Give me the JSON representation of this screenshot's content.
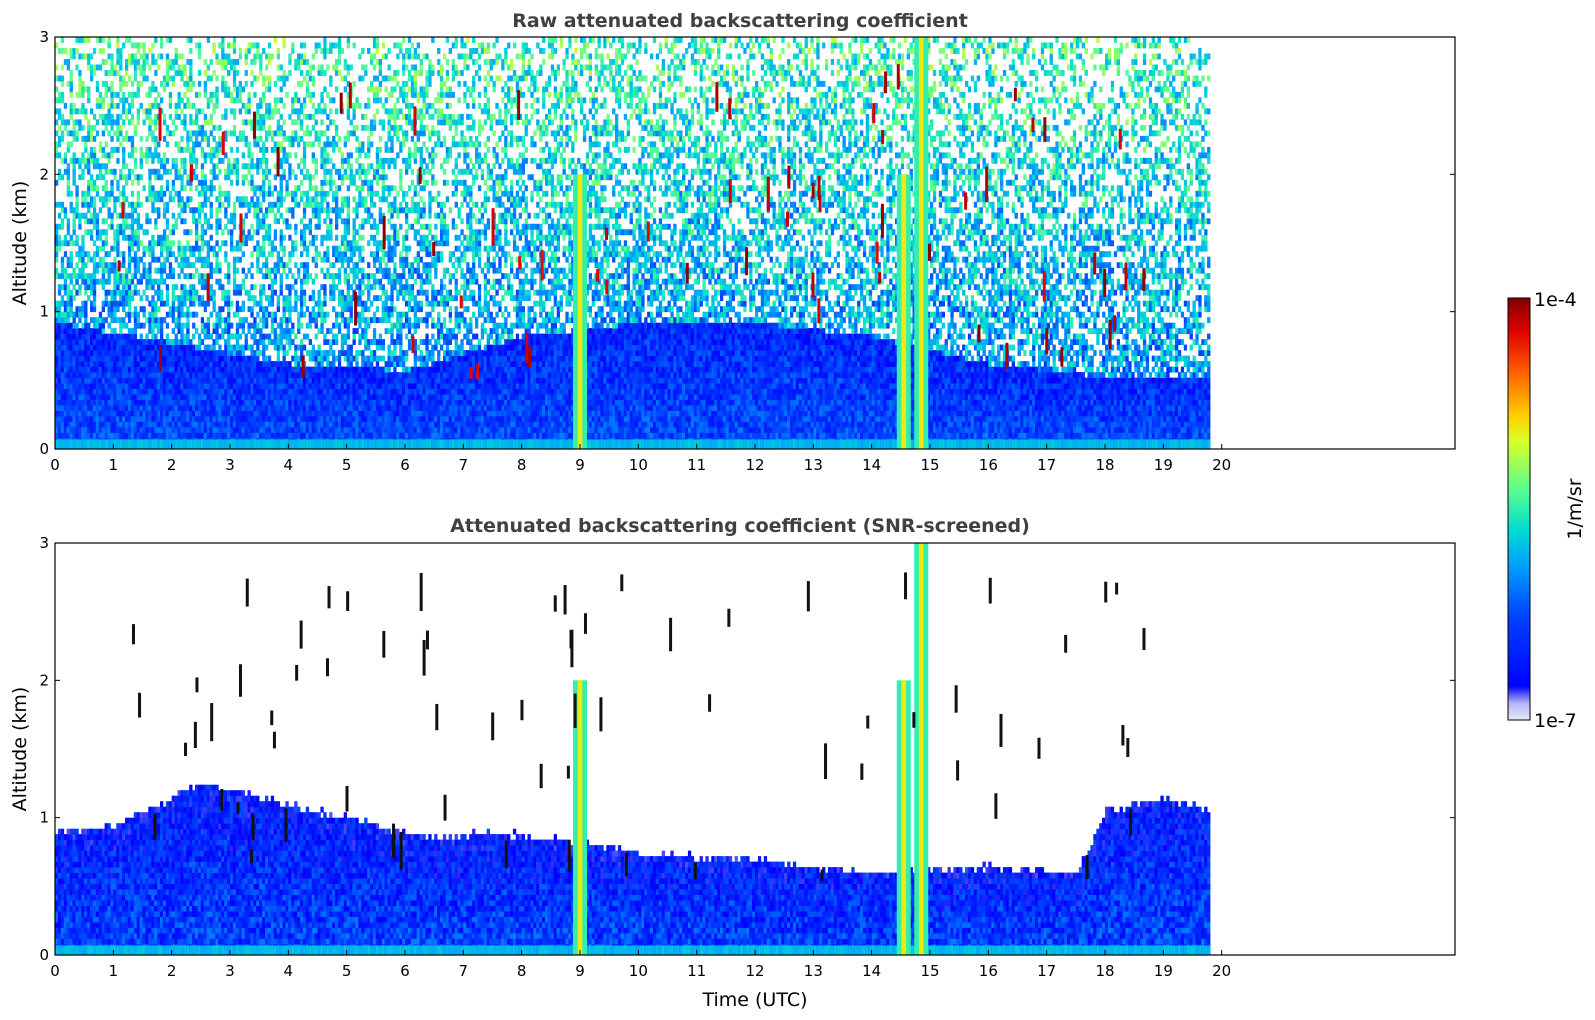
{
  "chart_data": [
    {
      "type": "heatmap",
      "title": "Raw attenuated backscattering coefficient",
      "xlabel": "",
      "ylabel": "Altitude (km)",
      "xlim": [
        0,
        24
      ],
      "ylim": [
        0,
        3
      ],
      "x_ticks": [
        "0",
        "1",
        "2",
        "3",
        "4",
        "5",
        "6",
        "7",
        "8",
        "9",
        "10",
        "11",
        "12",
        "13",
        "14",
        "15",
        "16",
        "17",
        "18",
        "19",
        "20"
      ],
      "y_ticks": [
        "0",
        "1",
        "2",
        "3"
      ],
      "data_time_range_utc": [
        0,
        19.8
      ],
      "color_scale": "log",
      "clim": [
        "1e-7",
        "1e-4"
      ],
      "grid": false,
      "features": [
        {
          "name": "aerosol_layer",
          "top_km_by_hour": [
            [
              0,
              0.9
            ],
            [
              2,
              0.75
            ],
            [
              4,
              0.6
            ],
            [
              6,
              0.55
            ],
            [
              8,
              0.8
            ],
            [
              10,
              0.9
            ],
            [
              12,
              0.9
            ],
            [
              14,
              0.8
            ],
            [
              16,
              0.6
            ],
            [
              18,
              0.5
            ],
            [
              19.8,
              0.5
            ]
          ]
        },
        {
          "name": "precipitation_column",
          "time_utc": 9.0,
          "from_km": 0,
          "to_km": 2.0
        },
        {
          "name": "precipitation_column",
          "time_utc": 14.55,
          "from_km": 0,
          "to_km": 2.0
        },
        {
          "name": "precipitation_column",
          "time_utc": 14.85,
          "from_km": 0,
          "to_km": 3.0
        }
      ]
    },
    {
      "type": "heatmap",
      "title": "Attenuated backscattering coefficient (SNR-screened)",
      "xlabel": "Time (UTC)",
      "ylabel": "Altitude (km)",
      "xlim": [
        0,
        24
      ],
      "ylim": [
        0,
        3
      ],
      "x_ticks": [
        "0",
        "1",
        "2",
        "3",
        "4",
        "5",
        "6",
        "7",
        "8",
        "9",
        "10",
        "11",
        "12",
        "13",
        "14",
        "15",
        "16",
        "17",
        "18",
        "19",
        "20"
      ],
      "y_ticks": [
        "0",
        "1",
        "2",
        "3"
      ],
      "data_time_range_utc": [
        0,
        19.8
      ],
      "color_scale": "log",
      "clim": [
        "1e-7",
        "1e-4"
      ],
      "grid": false,
      "features": [
        {
          "name": "screened_boundary_layer",
          "top_km_by_hour": [
            [
              0,
              0.85
            ],
            [
              1,
              0.9
            ],
            [
              2.5,
              1.2
            ],
            [
              4,
              1.05
            ],
            [
              5.5,
              0.9
            ],
            [
              6.5,
              0.8
            ],
            [
              7.5,
              0.85
            ],
            [
              8.5,
              0.8
            ],
            [
              10,
              0.7
            ],
            [
              12,
              0.65
            ],
            [
              14,
              0.55
            ],
            [
              16,
              0.6
            ],
            [
              17.5,
              0.55
            ],
            [
              18,
              1.0
            ],
            [
              19,
              1.1
            ],
            [
              19.8,
              1.0
            ]
          ]
        }
      ]
    }
  ],
  "colorbar": {
    "label": "1/m/sr",
    "max_label": "1e-4",
    "min_label": "1e-7",
    "colormap": [
      "#e4e4f8",
      "#b8b8f4",
      "#0000ff",
      "#0046ff",
      "#00a0ff",
      "#00dcd2",
      "#64ff8c",
      "#dcff28",
      "#ffd200",
      "#ff6e00",
      "#e60000",
      "#800000"
    ]
  }
}
